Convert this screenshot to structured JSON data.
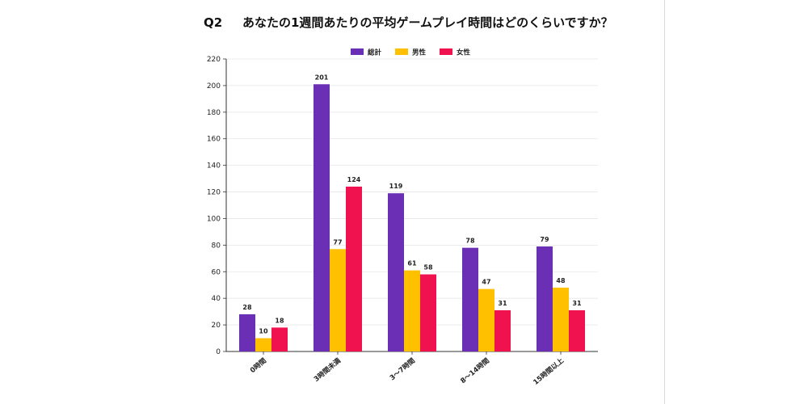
{
  "question": {
    "number": "Q2",
    "text": "あなたの1週間あたりの平均ゲームプレイ時間はどのくらいですか？"
  },
  "chart_data": {
    "type": "bar",
    "categories": [
      "0時間",
      "3時間未満",
      "3〜7時間",
      "8〜14時間",
      "15時間以上"
    ],
    "series": [
      {
        "name": "総計",
        "color": "#6a2fb4",
        "values": [
          28,
          201,
          119,
          78,
          79
        ]
      },
      {
        "name": "男性",
        "color": "#ffc000",
        "values": [
          10,
          77,
          61,
          47,
          48
        ]
      },
      {
        "name": "女性",
        "color": "#f0124f",
        "values": [
          18,
          124,
          58,
          31,
          31
        ]
      }
    ],
    "ylim": [
      0,
      220
    ],
    "yticks": [
      0,
      20,
      40,
      60,
      80,
      100,
      120,
      140,
      160,
      180,
      200,
      220
    ],
    "grid": true,
    "legend_position": "top-center"
  }
}
